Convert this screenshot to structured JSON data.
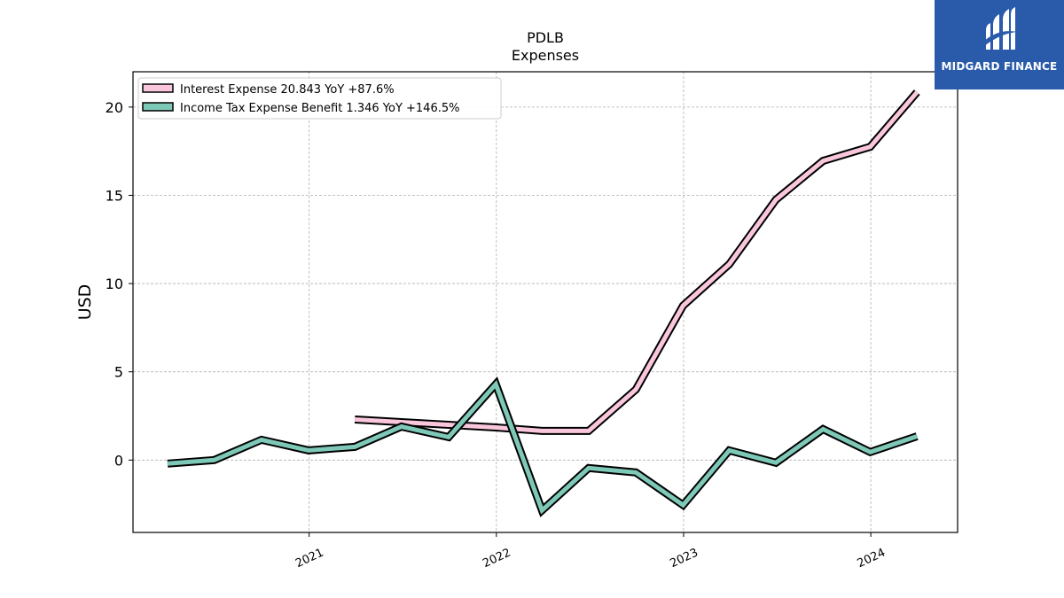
{
  "brand": {
    "name": "MIDGARD FINANCE",
    "background": "#2a5aaa",
    "icon": "midgard-logo-icon"
  },
  "chart_data": {
    "type": "line",
    "title": "PDLB",
    "subtitle": "Expenses",
    "ylabel": "USD",
    "xlabel": "",
    "ylim": [
      -4.1,
      22
    ],
    "yticks": [
      0,
      5,
      10,
      15,
      20
    ],
    "x_ticks": [
      "2021",
      "2022",
      "2023",
      "2024"
    ],
    "grid": true,
    "legend_position": "top-left",
    "series": [
      {
        "name": "Interest Expense",
        "legend_label": "Interest Expense  20.843 YoY +87.6%",
        "color": "#f9c6dc",
        "x": [
          "2021-03-31",
          "2021-06-30",
          "2021-09-30",
          "2021-12-31",
          "2022-03-31",
          "2022-06-30",
          "2022-09-30",
          "2022-12-31",
          "2023-03-31",
          "2023-06-30",
          "2023-09-30",
          "2023-12-31",
          "2024-03-31"
        ],
        "values": [
          2.3,
          2.15,
          2.0,
          1.85,
          1.65,
          1.65,
          4.0,
          8.75,
          11.1,
          14.75,
          16.95,
          17.75,
          20.843
        ]
      },
      {
        "name": "Income Tax Expense Benefit",
        "legend_label": "Income Tax Expense Benefit  1.346 YoY +146.5%",
        "color": "#7ec8b8",
        "x": [
          "2020-03-31",
          "2020-06-30",
          "2020-09-30",
          "2020-12-31",
          "2021-03-31",
          "2021-06-30",
          "2021-09-30",
          "2021-12-31",
          "2022-03-31",
          "2022-06-30",
          "2022-09-30",
          "2022-12-31",
          "2023-03-31",
          "2023-06-30",
          "2023-09-30",
          "2023-12-31",
          "2024-03-31"
        ],
        "values": [
          -0.2,
          0.0,
          1.15,
          0.55,
          0.75,
          1.9,
          1.3,
          4.3,
          -2.85,
          -0.45,
          -0.7,
          -2.55,
          0.55,
          -0.15,
          1.75,
          0.45,
          1.346
        ]
      }
    ]
  }
}
